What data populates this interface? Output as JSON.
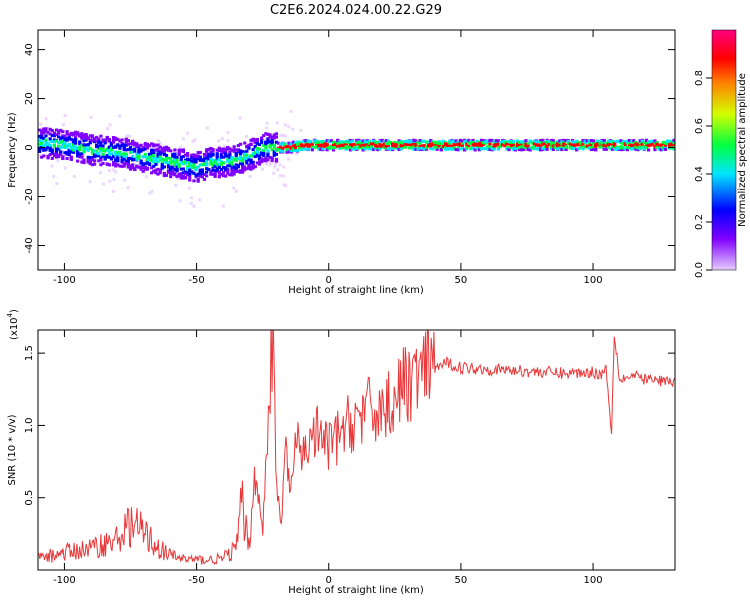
{
  "figure_title": "C2E6.2024.024.00.22.G29",
  "chart_data": [
    {
      "type": "heatmap",
      "xlabel": "Height of straight line (km)",
      "ylabel": "Frequency (Hz)",
      "xlim": [
        -110,
        131
      ],
      "ylim": [
        -50,
        48
      ],
      "xticks": [
        -100,
        -50,
        0,
        50,
        100
      ],
      "yticks": [
        -40,
        -20,
        0,
        20,
        40
      ],
      "ridge": {
        "x": [
          -110,
          -100,
          -90,
          -80,
          -70,
          -60,
          -50,
          -45,
          -40,
          -35,
          -30,
          -25,
          -20,
          -15,
          -10,
          0,
          20,
          50,
          80,
          100,
          131
        ],
        "y": [
          2,
          1,
          -1,
          -2,
          -4,
          -6,
          -8,
          -6,
          -6,
          -5,
          -3,
          0,
          0,
          0,
          1,
          1,
          1,
          1,
          1,
          1,
          1
        ]
      },
      "colorbar": {
        "label": "Normalized spectral amplitude",
        "range": [
          0.0,
          1.0
        ],
        "ticks": [
          "0.0",
          "0.2",
          "0.4",
          "0.6",
          "0.8"
        ],
        "colors": [
          "#e6ccff",
          "#8000ff",
          "#0000ff",
          "#00e6ff",
          "#00ff40",
          "#d4ff00",
          "#ff8000",
          "#ff0000",
          "#ff0080"
        ]
      }
    },
    {
      "type": "line",
      "xlabel": "Height of straight line (km)",
      "ylabel": "SNR (10 * v/v)",
      "scale_note": "(x10",
      "scale_exp": "4",
      "scale_close": ")",
      "xlim": [
        -110,
        131
      ],
      "ylim": [
        0,
        16600
      ],
      "xticks": [
        -100,
        -50,
        0,
        50,
        100
      ],
      "ytick_values": [
        5000,
        10000,
        15000
      ],
      "ytick_labels": [
        "0.5",
        "1.0",
        "1.5"
      ],
      "series": [
        {
          "name": "SNR",
          "color": "#e8383a",
          "x": [
            -110,
            -100,
            -90,
            -80,
            -75,
            -70,
            -65,
            -60,
            -55,
            -50,
            -45,
            -40,
            -35,
            -33,
            -30,
            -28,
            -25,
            -23,
            -21,
            -20,
            -18,
            -16,
            -15,
            -12,
            -10,
            -5,
            0,
            5,
            10,
            15,
            20,
            25,
            30,
            35,
            40,
            45,
            50,
            60,
            70,
            80,
            90,
            100,
            103,
            105,
            107,
            108,
            110,
            115,
            120,
            125,
            131
          ],
          "y": [
            800,
            1200,
            1500,
            2100,
            3200,
            2600,
            1600,
            1000,
            800,
            700,
            700,
            800,
            1500,
            4500,
            1500,
            7000,
            2500,
            11000,
            16600,
            6000,
            3000,
            9000,
            5500,
            8500,
            8000,
            9500,
            8500,
            9500,
            10500,
            11000,
            11000,
            12000,
            13000,
            13500,
            14000,
            14300,
            14000,
            13900,
            13800,
            13700,
            13600,
            13700,
            13500,
            14000,
            9400,
            16600,
            13200,
            13400,
            13200,
            13100,
            13000
          ]
        }
      ]
    }
  ]
}
